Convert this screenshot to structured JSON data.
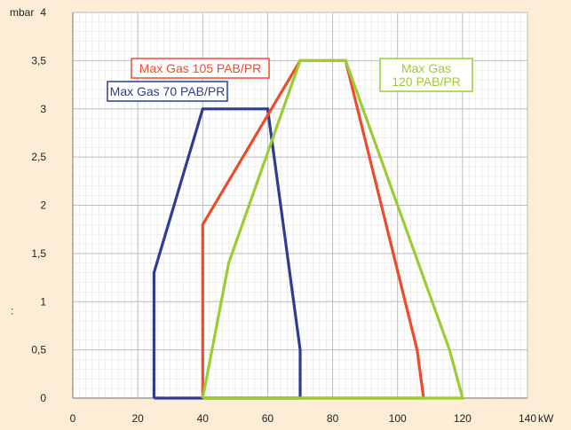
{
  "chart_data": {
    "type": "line",
    "x_unit": "kW",
    "y_unit": "mbar",
    "xlim": [
      0,
      140
    ],
    "ylim": [
      0,
      4
    ],
    "x_ticks": [
      0,
      20,
      40,
      60,
      80,
      100,
      120,
      140
    ],
    "y_ticks": [
      0,
      0.5,
      1,
      1.5,
      2,
      2.5,
      3,
      3.5,
      4
    ],
    "x_tick_labels": [
      "0",
      "20",
      "40",
      "60",
      "80",
      "100",
      "120",
      "140"
    ],
    "y_tick_labels": [
      "0",
      "0,5",
      "1",
      "1,5",
      "2",
      "2,5",
      "3",
      "3,5",
      "4"
    ],
    "grid": true,
    "left_mark": ":",
    "series": [
      {
        "name": "Max Gas 70 PAB/PR",
        "color": "#2e3d8f",
        "points": [
          [
            25,
            0
          ],
          [
            25,
            1.3
          ],
          [
            40,
            3
          ],
          [
            60,
            3
          ],
          [
            70,
            0.5
          ],
          [
            70,
            0
          ],
          [
            25,
            0
          ]
        ]
      },
      {
        "name": "Max Gas 105 PAB/PR",
        "color": "#ee4b2b",
        "points": [
          [
            40,
            0
          ],
          [
            40,
            1.8
          ],
          [
            70,
            3.5
          ],
          [
            84,
            3.5
          ],
          [
            106,
            0.5
          ],
          [
            108,
            0
          ],
          [
            40,
            0
          ]
        ]
      },
      {
        "name": "Max Gas\n120 PAB/PR",
        "color": "#9acd32",
        "points": [
          [
            40,
            0
          ],
          [
            48,
            1.4
          ],
          [
            70,
            3.5
          ],
          [
            84,
            3.5
          ],
          [
            116,
            0.5
          ],
          [
            120,
            0
          ],
          [
            40,
            0
          ]
        ]
      }
    ]
  }
}
